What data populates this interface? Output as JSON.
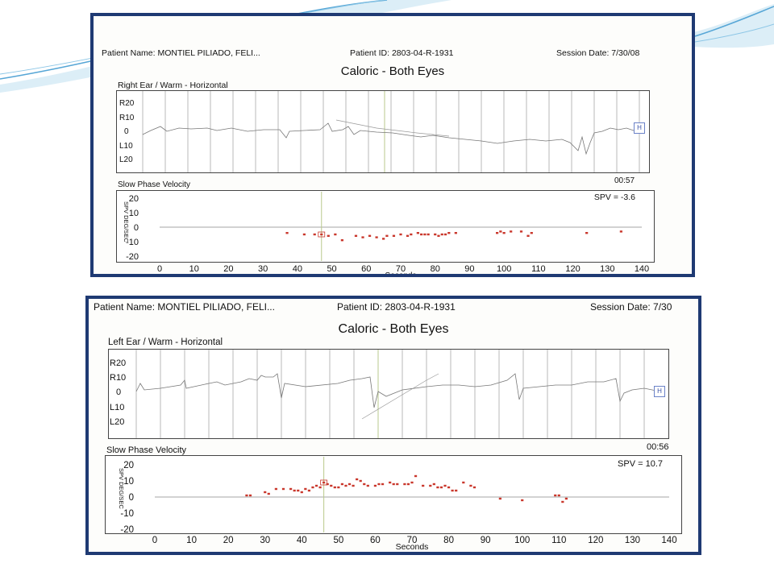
{
  "colors": {
    "frame": "#1f3a73",
    "point": "#c9372c",
    "grid": "#9a9a9a"
  },
  "panels": [
    {
      "patient_name": "Patient Name: MONTIEL PILIADO, FELI...",
      "patient_id": "Patient ID: 2803-04-R-1931",
      "session_date": "Session Date: 7/30/08",
      "title": "Caloric - Both Eyes",
      "trace_label": "Right Ear / Warm - Horizontal",
      "trace_ticks": [
        "R20",
        "R10",
        "0",
        "L10",
        "L20"
      ],
      "h_marker": "H",
      "duration": "00:57",
      "spv_heading": "Slow Phase Velocity"
    },
    {
      "patient_name": "Patient Name: MONTIEL PILIADO, FELI...",
      "patient_id": "Patient ID: 2803-04-R-1931",
      "session_date": "Session Date: 7/30",
      "title": "Caloric - Both Eyes",
      "trace_label": "Left Ear / Warm - Horizontal",
      "trace_ticks": [
        "R20",
        "R10",
        "0",
        "L10",
        "L20"
      ],
      "h_marker": "H",
      "duration": "00:56",
      "spv_heading": "Slow Phase Velocity"
    }
  ],
  "chart_data": [
    {
      "type": "scatter",
      "title": "Slow Phase Velocity",
      "annotation": "SPV = -3.6",
      "xlabel": "Seconds",
      "ylabel": "SPV DEG/SEC",
      "xlim": [
        0,
        140
      ],
      "ylim": [
        -20,
        20
      ],
      "xticks": [
        0,
        10,
        20,
        30,
        40,
        50,
        60,
        70,
        80,
        90,
        100,
        110,
        120,
        130,
        140
      ],
      "yticks": [
        20,
        10,
        0,
        -10,
        -20
      ],
      "marker_x": 47,
      "points": [
        [
          37,
          -4
        ],
        [
          42,
          -5
        ],
        [
          45,
          -5
        ],
        [
          47,
          -5
        ],
        [
          49,
          -6
        ],
        [
          51,
          -5
        ],
        [
          53,
          -9
        ],
        [
          57,
          -6
        ],
        [
          59,
          -7
        ],
        [
          61,
          -6
        ],
        [
          63,
          -7
        ],
        [
          65,
          -8
        ],
        [
          66,
          -6
        ],
        [
          68,
          -6
        ],
        [
          70,
          -5
        ],
        [
          72,
          -6
        ],
        [
          73,
          -5
        ],
        [
          75,
          -4
        ],
        [
          76,
          -5
        ],
        [
          77,
          -5
        ],
        [
          78,
          -5
        ],
        [
          80,
          -5
        ],
        [
          81,
          -6
        ],
        [
          82,
          -5
        ],
        [
          83,
          -5
        ],
        [
          84,
          -4
        ],
        [
          86,
          -4
        ],
        [
          98,
          -4
        ],
        [
          99,
          -3
        ],
        [
          100,
          -4
        ],
        [
          102,
          -3
        ],
        [
          105,
          -3
        ],
        [
          107,
          -6
        ],
        [
          108,
          -4
        ],
        [
          124,
          -4
        ],
        [
          134,
          -3
        ]
      ]
    },
    {
      "type": "scatter",
      "title": "Slow Phase Velocity",
      "annotation": "SPV = 10.7",
      "xlabel": "Seconds",
      "ylabel": "SPV DEG/SEC",
      "xlim": [
        0,
        140
      ],
      "ylim": [
        -20,
        20
      ],
      "xticks": [
        0,
        10,
        20,
        30,
        40,
        50,
        60,
        70,
        80,
        90,
        100,
        110,
        120,
        130,
        140
      ],
      "yticks": [
        20,
        10,
        0,
        -10,
        -20
      ],
      "marker_x": 46,
      "points": [
        [
          25,
          1
        ],
        [
          26,
          1
        ],
        [
          30,
          3
        ],
        [
          31,
          2
        ],
        [
          33,
          5
        ],
        [
          35,
          5
        ],
        [
          37,
          5
        ],
        [
          38,
          4
        ],
        [
          39,
          4
        ],
        [
          40,
          3
        ],
        [
          41,
          5
        ],
        [
          42,
          4
        ],
        [
          43,
          6
        ],
        [
          44,
          7
        ],
        [
          45,
          6
        ],
        [
          46,
          9
        ],
        [
          47,
          8
        ],
        [
          48,
          7
        ],
        [
          49,
          6
        ],
        [
          50,
          6
        ],
        [
          51,
          8
        ],
        [
          52,
          7
        ],
        [
          53,
          8
        ],
        [
          54,
          7
        ],
        [
          55,
          11
        ],
        [
          56,
          10
        ],
        [
          57,
          8
        ],
        [
          58,
          7
        ],
        [
          60,
          7
        ],
        [
          61,
          8
        ],
        [
          62,
          8
        ],
        [
          64,
          9
        ],
        [
          65,
          8
        ],
        [
          66,
          8
        ],
        [
          68,
          8
        ],
        [
          69,
          8
        ],
        [
          70,
          9
        ],
        [
          71,
          13
        ],
        [
          73,
          7
        ],
        [
          75,
          7
        ],
        [
          76,
          8
        ],
        [
          77,
          6
        ],
        [
          78,
          6
        ],
        [
          79,
          7
        ],
        [
          80,
          6
        ],
        [
          81,
          4
        ],
        [
          82,
          4
        ],
        [
          84,
          9
        ],
        [
          86,
          7
        ],
        [
          87,
          6
        ],
        [
          94,
          -1
        ],
        [
          100,
          -2
        ],
        [
          109,
          1
        ],
        [
          110,
          1
        ],
        [
          111,
          -3
        ],
        [
          112,
          -1
        ]
      ]
    }
  ]
}
